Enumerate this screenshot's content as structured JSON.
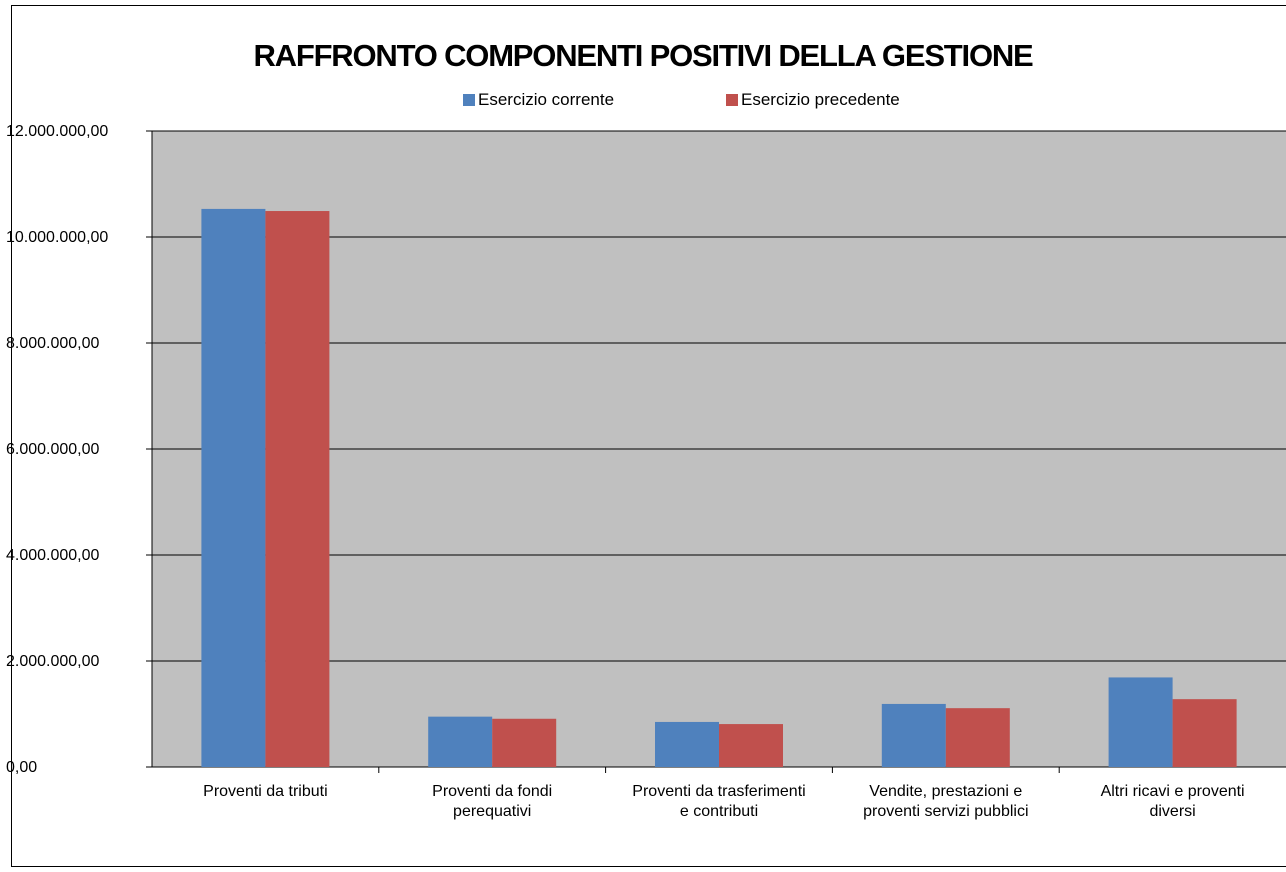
{
  "chart_data": {
    "type": "bar",
    "title": "RAFFRONTO COMPONENTI POSITIVI DELLA GESTIONE",
    "categories": [
      [
        "Proventi da tributi"
      ],
      [
        "Proventi da fondi",
        "perequativi"
      ],
      [
        "Proventi da trasferimenti",
        "e contributi"
      ],
      [
        "Vendite, prestazioni e",
        "proventi servizi pubblici"
      ],
      [
        "Altri ricavi e proventi",
        "diversi"
      ]
    ],
    "series": [
      {
        "name": "Esercizio corrente",
        "color": "#4F81BD",
        "values": [
          10530000,
          950000,
          850000,
          1190000,
          1690000
        ]
      },
      {
        "name": "Esercizio precedente",
        "color": "#C0504D",
        "values": [
          10490000,
          910000,
          810000,
          1110000,
          1280000
        ]
      }
    ],
    "ylim": [
      0,
      12000000
    ],
    "yticks": [
      "0,00",
      "2.000.000,00",
      "4.000.000,00",
      "6.000.000,00",
      "8.000.000,00",
      "10.000.000,00",
      "12.000.000,00"
    ],
    "ytick_values": [
      0,
      2000000,
      4000000,
      6000000,
      8000000,
      10000000,
      12000000
    ],
    "plot_background": "#C0C0C0",
    "grid": true,
    "legend_position": "top"
  }
}
